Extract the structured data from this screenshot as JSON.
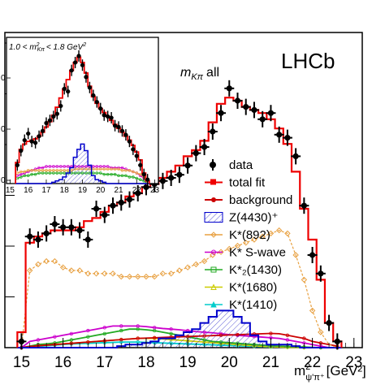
{
  "chart_data": [
    {
      "type": "line",
      "title": "",
      "annotation_main": "LHCb",
      "annotation_sub": "m",
      "annotation_sub_index": "Kπ",
      "annotation_sub_tail": "all",
      "xlabel": "m",
      "xlabel_sup": "2",
      "xlabel_sub": "ψ'π⁺",
      "xlabel_unit": "[GeV²]",
      "xlim": [
        14.6,
        23.2
      ],
      "ylim": [
        0,
        1
      ],
      "x_ticks": [
        "15",
        "16",
        "17",
        "18",
        "19",
        "20",
        "21",
        "22",
        "23"
      ],
      "bin_edges": [
        14.9,
        15.1,
        15.3,
        15.5,
        15.7,
        15.9,
        16.1,
        16.3,
        16.5,
        16.7,
        16.9,
        17.1,
        17.3,
        17.5,
        17.7,
        17.9,
        18.1,
        18.3,
        18.5,
        18.7,
        18.9,
        19.1,
        19.3,
        19.5,
        19.7,
        19.9,
        20.1,
        20.3,
        20.5,
        20.7,
        20.9,
        21.1,
        21.3,
        21.5,
        21.7,
        21.9,
        22.1,
        22.3,
        22.5,
        22.7
      ],
      "legend": [
        "data",
        "total fit",
        "background",
        "Z(4430)⁺",
        "K*(892)",
        "K* S-wave",
        "K*₂(1430)",
        "K*(1680)",
        "K*(1410)"
      ],
      "legend_position": "right",
      "colors": {
        "data": "#000000",
        "total_fit": "#ee0000",
        "background": "#cc0000",
        "z4430": "#0000cc",
        "k892": "#e8a040",
        "kswave": "#cc00cc",
        "k2_1430": "#22aa22",
        "k1680": "#cccc00",
        "k1410": "#00cccc"
      },
      "series": [
        {
          "name": "data",
          "x": [
            15.0,
            15.2,
            15.4,
            15.6,
            15.8,
            16.0,
            16.2,
            16.4,
            16.6,
            16.8,
            17.0,
            17.2,
            17.4,
            17.6,
            17.8,
            18.0,
            18.2,
            18.4,
            18.6,
            18.8,
            19.0,
            19.2,
            19.4,
            19.6,
            19.8,
            20.0,
            20.2,
            20.4,
            20.6,
            20.8,
            21.0,
            21.2,
            21.4,
            21.6,
            21.8,
            22.0,
            22.2,
            22.4,
            22.6
          ],
          "y": [
            0.02,
            0.36,
            0.35,
            0.37,
            0.4,
            0.39,
            0.39,
            0.38,
            0.35,
            0.45,
            0.43,
            0.46,
            0.47,
            0.48,
            0.5,
            0.52,
            0.53,
            0.54,
            0.55,
            0.56,
            0.59,
            0.63,
            0.65,
            0.7,
            0.76,
            0.84,
            0.8,
            0.78,
            0.77,
            0.74,
            0.76,
            0.69,
            0.68,
            0.62,
            0.46,
            0.3,
            0.24,
            0.08,
            0.02
          ]
        },
        {
          "name": "total fit",
          "y": [
            0.05,
            0.34,
            0.36,
            0.37,
            0.38,
            0.38,
            0.38,
            0.39,
            0.41,
            0.42,
            0.44,
            0.46,
            0.47,
            0.49,
            0.5,
            0.52,
            0.53,
            0.55,
            0.57,
            0.59,
            0.62,
            0.64,
            0.67,
            0.73,
            0.79,
            0.81,
            0.8,
            0.78,
            0.77,
            0.76,
            0.74,
            0.71,
            0.66,
            0.57,
            0.45,
            0.35,
            0.22,
            0.08,
            0.02
          ]
        },
        {
          "name": "K*(892)",
          "y": [
            0.0,
            0.25,
            0.27,
            0.28,
            0.28,
            0.26,
            0.25,
            0.25,
            0.24,
            0.24,
            0.24,
            0.24,
            0.23,
            0.23,
            0.23,
            0.23,
            0.23,
            0.24,
            0.24,
            0.25,
            0.26,
            0.27,
            0.28,
            0.3,
            0.31,
            0.32,
            0.33,
            0.34,
            0.35,
            0.36,
            0.37,
            0.38,
            0.37,
            0.3,
            0.22,
            0.12,
            0.05,
            0.01,
            0.0
          ]
        },
        {
          "name": "Z(4430)⁺",
          "y": [
            0.0,
            0.0,
            0.0,
            0.0,
            0.0,
            0.0,
            0.0,
            0.0,
            0.0,
            0.0,
            0.0,
            0.0,
            0.005,
            0.01,
            0.01,
            0.015,
            0.02,
            0.03,
            0.03,
            0.04,
            0.05,
            0.06,
            0.08,
            0.1,
            0.12,
            0.12,
            0.1,
            0.08,
            0.04,
            0.02,
            0.01,
            0.01,
            0.01,
            0.005,
            0.0,
            0.0,
            0.0,
            0.0,
            0.0
          ]
        },
        {
          "name": "K* S-wave",
          "y": [
            0.0,
            0.02,
            0.025,
            0.03,
            0.035,
            0.04,
            0.045,
            0.05,
            0.055,
            0.06,
            0.065,
            0.07,
            0.07,
            0.07,
            0.07,
            0.068,
            0.065,
            0.062,
            0.06,
            0.058,
            0.055,
            0.052,
            0.05,
            0.048,
            0.045,
            0.042,
            0.04,
            0.038,
            0.036,
            0.034,
            0.032,
            0.03,
            0.025,
            0.02,
            0.015,
            0.01,
            0.005,
            0.0,
            0.0
          ]
        },
        {
          "name": "K*₂(1430)",
          "y": [
            0.0,
            0.005,
            0.01,
            0.012,
            0.015,
            0.02,
            0.025,
            0.03,
            0.035,
            0.04,
            0.045,
            0.05,
            0.055,
            0.06,
            0.06,
            0.058,
            0.055,
            0.05,
            0.045,
            0.04,
            0.035,
            0.03,
            0.025,
            0.02,
            0.018,
            0.016,
            0.014,
            0.012,
            0.01,
            0.008,
            0.006,
            0.005,
            0.004,
            0.003,
            0.002,
            0.001,
            0.0,
            0.0,
            0.0
          ]
        },
        {
          "name": "K*(1680)",
          "y": [
            0.0,
            0.003,
            0.006,
            0.008,
            0.01,
            0.012,
            0.014,
            0.016,
            0.018,
            0.02,
            0.022,
            0.024,
            0.026,
            0.028,
            0.03,
            0.03,
            0.03,
            0.028,
            0.026,
            0.024,
            0.022,
            0.02,
            0.018,
            0.016,
            0.014,
            0.012,
            0.01,
            0.008,
            0.006,
            0.004,
            0.003,
            0.002,
            0.001,
            0.001,
            0.0,
            0.0,
            0.0,
            0.0,
            0.0
          ]
        },
        {
          "name": "K*(1410)",
          "y": [
            0.0,
            0.002,
            0.004,
            0.006,
            0.008,
            0.01,
            0.012,
            0.013,
            0.014,
            0.015,
            0.016,
            0.017,
            0.018,
            0.018,
            0.018,
            0.017,
            0.016,
            0.015,
            0.014,
            0.013,
            0.012,
            0.011,
            0.01,
            0.009,
            0.008,
            0.007,
            0.006,
            0.005,
            0.004,
            0.003,
            0.002,
            0.002,
            0.001,
            0.001,
            0.0,
            0.0,
            0.0,
            0.0,
            0.0
          ]
        },
        {
          "name": "background",
          "y": [
            0.0,
            0.004,
            0.006,
            0.008,
            0.01,
            0.012,
            0.014,
            0.016,
            0.018,
            0.02,
            0.022,
            0.024,
            0.026,
            0.028,
            0.03,
            0.031,
            0.032,
            0.033,
            0.034,
            0.035,
            0.036,
            0.037,
            0.038,
            0.039,
            0.04,
            0.041,
            0.042,
            0.043,
            0.044,
            0.045,
            0.046,
            0.045,
            0.04,
            0.035,
            0.03,
            0.02,
            0.015,
            0.01,
            0.005
          ]
        }
      ]
    },
    {
      "type": "line",
      "title": "1.0 < m²_Kπ < 1.8 GeV²",
      "title_parts": {
        "lo": "1.0 <",
        "m": "m",
        "sup": "2",
        "sub": "Kπ",
        "hi": "< 1.8 GeV",
        "hi_sup": "2"
      },
      "xlim": [
        14.8,
        23.2
      ],
      "ylim": [
        0,
        1
      ],
      "x_ticks": [
        "15",
        "16",
        "17",
        "18",
        "19",
        "20",
        "21",
        "22",
        "23"
      ],
      "y_ticks": [
        "0",
        "0",
        "0"
      ],
      "series": [
        {
          "name": "data",
          "x": [
            15.4,
            15.6,
            15.8,
            16.0,
            16.2,
            16.4,
            16.6,
            16.8,
            17.0,
            17.2,
            17.4,
            17.6,
            17.8,
            18.0,
            18.2,
            18.4,
            18.6,
            18.8,
            19.0,
            19.2,
            19.4,
            19.6,
            19.8,
            20.0,
            20.2,
            20.4,
            20.6,
            20.8,
            21.0,
            21.2,
            21.4,
            21.6,
            21.8,
            22.0,
            22.2,
            22.4,
            22.6
          ],
          "y": [
            0.14,
            0.25,
            0.33,
            0.38,
            0.32,
            0.31,
            0.36,
            0.4,
            0.46,
            0.48,
            0.51,
            0.53,
            0.59,
            0.72,
            0.7,
            0.86,
            0.92,
            0.97,
            0.9,
            0.81,
            0.73,
            0.67,
            0.62,
            0.57,
            0.52,
            0.51,
            0.5,
            0.44,
            0.43,
            0.4,
            0.37,
            0.32,
            0.26,
            0.21,
            0.14,
            0.07,
            0.03
          ]
        },
        {
          "name": "total fit",
          "y": [
            0.16,
            0.26,
            0.3,
            0.32,
            0.33,
            0.34,
            0.36,
            0.39,
            0.43,
            0.47,
            0.52,
            0.58,
            0.65,
            0.72,
            0.79,
            0.86,
            0.92,
            0.96,
            0.92,
            0.84,
            0.74,
            0.66,
            0.61,
            0.57,
            0.54,
            0.51,
            0.48,
            0.45,
            0.42,
            0.39,
            0.36,
            0.33,
            0.29,
            0.24,
            0.18,
            0.08,
            0.02
          ]
        },
        {
          "name": "Z(4430)⁺",
          "y": [
            0.0,
            0.0,
            0.0,
            0.0,
            0.0,
            0.0,
            0.0,
            0.0,
            0.0,
            0.0,
            0.01,
            0.02,
            0.03,
            0.05,
            0.08,
            0.12,
            0.2,
            0.26,
            0.3,
            0.25,
            0.14,
            0.06,
            0.03,
            0.02,
            0.01,
            0.0,
            0.0,
            0.0,
            0.0,
            0.0,
            0.0,
            0.0,
            0.0,
            0.0,
            0.0,
            0.0,
            0.0
          ]
        },
        {
          "name": "K*(892)",
          "y": [
            0.08,
            0.09,
            0.09,
            0.1,
            0.1,
            0.1,
            0.1,
            0.1,
            0.1,
            0.1,
            0.1,
            0.1,
            0.1,
            0.1,
            0.1,
            0.1,
            0.11,
            0.11,
            0.11,
            0.11,
            0.11,
            0.11,
            0.11,
            0.11,
            0.11,
            0.11,
            0.11,
            0.11,
            0.11,
            0.1,
            0.1,
            0.1,
            0.09,
            0.08,
            0.07,
            0.05,
            0.0
          ]
        },
        {
          "name": "K* S-wave",
          "y": [
            0.06,
            0.07,
            0.08,
            0.09,
            0.1,
            0.11,
            0.12,
            0.12,
            0.13,
            0.13,
            0.13,
            0.13,
            0.13,
            0.13,
            0.13,
            0.13,
            0.13,
            0.13,
            0.13,
            0.13,
            0.13,
            0.13,
            0.13,
            0.13,
            0.13,
            0.13,
            0.12,
            0.12,
            0.12,
            0.12,
            0.11,
            0.1,
            0.09,
            0.08,
            0.06,
            0.04,
            0.0
          ]
        },
        {
          "name": "K*₂(1430)",
          "y": [
            0.04,
            0.05,
            0.06,
            0.06,
            0.07,
            0.07,
            0.08,
            0.08,
            0.08,
            0.08,
            0.08,
            0.08,
            0.08,
            0.08,
            0.08,
            0.08,
            0.08,
            0.08,
            0.08,
            0.08,
            0.08,
            0.08,
            0.08,
            0.08,
            0.07,
            0.07,
            0.07,
            0.07,
            0.06,
            0.06,
            0.06,
            0.05,
            0.05,
            0.04,
            0.03,
            0.02,
            0.0
          ]
        }
      ]
    }
  ]
}
